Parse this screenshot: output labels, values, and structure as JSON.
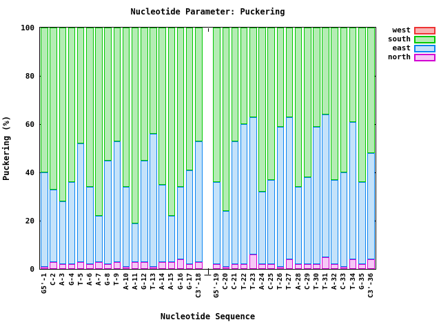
{
  "title": "Nucleotide Parameter: Puckering",
  "ylabel": "Puckering (%)",
  "xlabel": "Nucleotide Sequence",
  "y_ticks": [
    0,
    20,
    40,
    60,
    80,
    100
  ],
  "legend": [
    {
      "label": "west",
      "fill": "#f8b4b4",
      "border": "#ee3333"
    },
    {
      "label": "south",
      "fill": "#b4ecb4",
      "border": "#00c800"
    },
    {
      "label": "east",
      "fill": "#c4e2fa",
      "border": "#0a84f0"
    },
    {
      "label": "north",
      "fill": "#f6c8f6",
      "border": "#d200d2"
    }
  ],
  "chart_data": {
    "type": "bar",
    "stacked": true,
    "title": "Nucleotide Parameter: Puckering",
    "xlabel": "Nucleotide Sequence",
    "ylabel": "Puckering (%)",
    "ylim": [
      0,
      100
    ],
    "grid": false,
    "legend_position": "top-right-outside",
    "stack_order": [
      "north",
      "east",
      "south",
      "west"
    ],
    "categories": [
      "G5'-1",
      "C-2",
      "A-3",
      "G-4",
      "T-5",
      "A-6",
      "A-7",
      "G-8",
      "T-9",
      "A-10",
      "A-11",
      "G-12",
      "T-13",
      "A-14",
      "A-15",
      "G-16",
      "G-17",
      "C3'-18",
      "|",
      "G5'-19",
      "C-20",
      "C-21",
      "T-22",
      "T-23",
      "A-24",
      "C-25",
      "T-26",
      "T-27",
      "A-28",
      "C-29",
      "T-30",
      "T-31",
      "A-32",
      "C-33",
      "T-34",
      "G-35",
      "C3'-36"
    ],
    "series": [
      {
        "name": "north",
        "fill": "#f6c8f6",
        "border": "#d200d2",
        "values": [
          1,
          3,
          2,
          2,
          3,
          2,
          3,
          2,
          3,
          1,
          3,
          3,
          1,
          3,
          3,
          4,
          2,
          3,
          null,
          2,
          1,
          2,
          2,
          6,
          2,
          2,
          1,
          4,
          2,
          2,
          2,
          5,
          2,
          1,
          4,
          2,
          4
        ]
      },
      {
        "name": "east",
        "fill": "#c4e2fa",
        "border": "#0a84f0",
        "values": [
          39,
          30,
          26,
          34,
          49,
          32,
          19,
          43,
          50,
          33,
          16,
          42,
          55,
          32,
          19,
          30,
          39,
          50,
          null,
          34,
          23,
          51,
          58,
          57,
          30,
          35,
          58,
          59,
          32,
          36,
          57,
          59,
          35,
          39,
          57,
          34,
          44
        ]
      },
      {
        "name": "south",
        "fill": "#b4ecb4",
        "border": "#00c800",
        "values": [
          60,
          67,
          72,
          64,
          48,
          66,
          78,
          55,
          47,
          66,
          81,
          55,
          44,
          65,
          78,
          66,
          59,
          47,
          null,
          64,
          76,
          47,
          40,
          37,
          68,
          63,
          41,
          37,
          66,
          62,
          41,
          36,
          63,
          60,
          39,
          64,
          52
        ]
      },
      {
        "name": "west",
        "fill": "#f8b4b4",
        "border": "#ee3333",
        "values": [
          0,
          0,
          0,
          0,
          0,
          0,
          0,
          0,
          0,
          0,
          0,
          0,
          0,
          0,
          0,
          0,
          0,
          0,
          null,
          0,
          0,
          0,
          0,
          0,
          0,
          0,
          0,
          0,
          0,
          0,
          0,
          0,
          0,
          0,
          0,
          0,
          0
        ]
      }
    ]
  }
}
